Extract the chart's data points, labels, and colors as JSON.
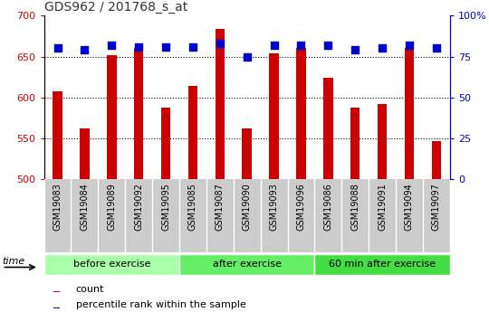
{
  "title": "GDS962 / 201768_s_at",
  "samples": [
    "GSM19083",
    "GSM19084",
    "GSM19089",
    "GSM19092",
    "GSM19095",
    "GSM19085",
    "GSM19087",
    "GSM19090",
    "GSM19093",
    "GSM19096",
    "GSM19086",
    "GSM19088",
    "GSM19091",
    "GSM19094",
    "GSM19097"
  ],
  "counts": [
    608,
    562,
    652,
    660,
    588,
    614,
    684,
    562,
    654,
    660,
    624,
    588,
    592,
    660,
    547
  ],
  "percentile_ranks": [
    80,
    79,
    82,
    81,
    81,
    81,
    83,
    75,
    82,
    82,
    82,
    79,
    80,
    82,
    80
  ],
  "groups": [
    {
      "label": "before exercise",
      "start": 0,
      "end": 5,
      "color": "#aaffaa"
    },
    {
      "label": "after exercise",
      "start": 5,
      "end": 10,
      "color": "#66ee66"
    },
    {
      "label": "60 min after exercise",
      "start": 10,
      "end": 15,
      "color": "#44dd44"
    }
  ],
  "ylim_left": [
    500,
    700
  ],
  "ylim_right": [
    0,
    100
  ],
  "yticks_left": [
    500,
    550,
    600,
    650,
    700
  ],
  "yticks_right": [
    0,
    25,
    50,
    75,
    100
  ],
  "bar_color": "#cc0000",
  "dot_color": "#0000cc",
  "bg_color": "#cccccc",
  "bar_width": 0.35,
  "dot_size": 40,
  "left_axis_color": "#cc0000",
  "right_axis_color": "#0000cc",
  "gridline_y": [
    550,
    600,
    650
  ],
  "fig_width": 5.4,
  "fig_height": 3.45,
  "dpi": 100
}
